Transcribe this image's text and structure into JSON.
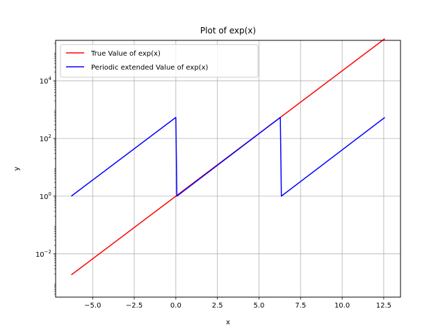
{
  "chart_data": {
    "type": "line",
    "title": "Plot of exp(x)",
    "xlabel": "x",
    "ylabel": "y",
    "xlim": [
      -7.226,
      13.508
    ],
    "ylim_log10": [
      -3.5,
      5.4
    ],
    "yscale": "log",
    "grid": true,
    "legend_position": "top-left",
    "x_ticks": [
      -5.0,
      -2.5,
      0.0,
      2.5,
      5.0,
      7.5,
      10.0,
      12.5
    ],
    "x_tick_labels": [
      "−5.0",
      "−2.5",
      "0.0",
      "2.5",
      "5.0",
      "7.5",
      "10.0",
      "12.5"
    ],
    "y_ticks": [
      {
        "base": "10",
        "exp": "−2",
        "log10": -2
      },
      {
        "base": "10",
        "exp": "0",
        "log10": 0
      },
      {
        "base": "10",
        "exp": "2",
        "log10": 2
      },
      {
        "base": "10",
        "exp": "4",
        "log10": 4
      }
    ],
    "series": [
      {
        "name": "True Value of exp(x)",
        "color": "#ff0000",
        "points": [
          [
            -6.283,
            0.001867
          ],
          [
            12.566,
            286751.3
          ]
        ]
      },
      {
        "name": "Periodic extended Value of exp(x)",
        "color": "#0000ff",
        "points": [
          [
            -6.283,
            1.0
          ],
          [
            0.0,
            535.49
          ],
          [
            0.063,
            1.0
          ],
          [
            6.283,
            535.49
          ],
          [
            6.346,
            1.0
          ],
          [
            12.566,
            535.49
          ]
        ]
      }
    ]
  }
}
